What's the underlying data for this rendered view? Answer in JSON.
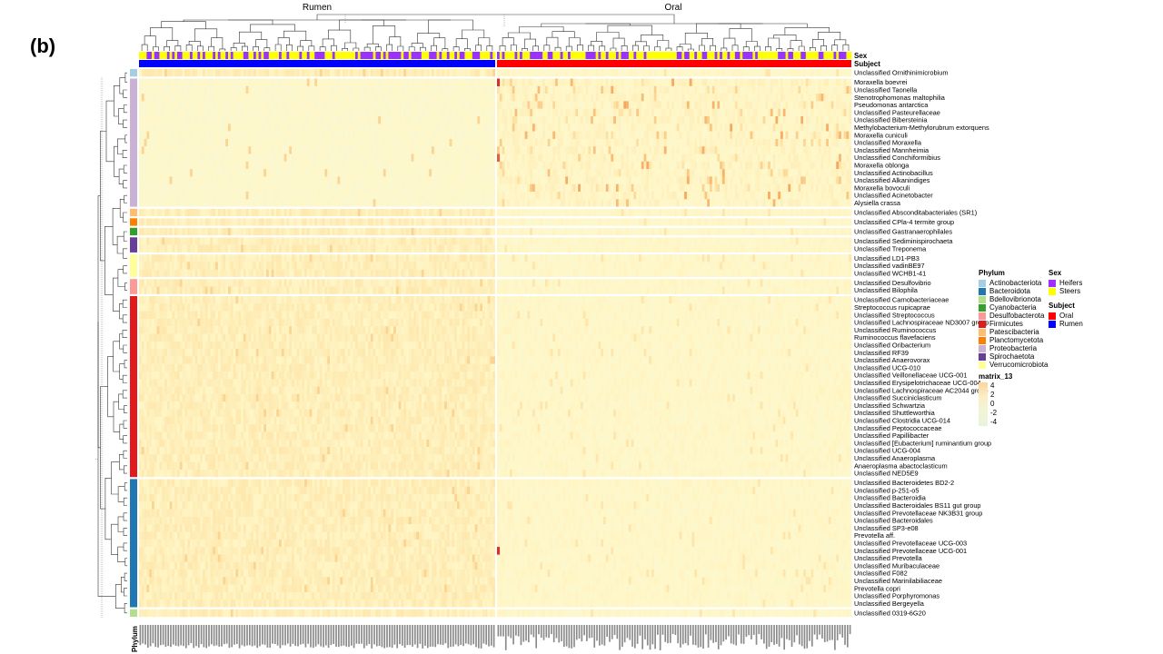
{
  "panel_label": "(b)",
  "colors": {
    "Actinobacteriota": "#a6cee3",
    "Bacteroidota": "#1f78b4",
    "Bdellovibrionota": "#b2df8a",
    "Cyanobacteria": "#33a02c",
    "Desulfobacterota": "#fb9a99",
    "Firmicutes": "#e31a1c",
    "Patescibacteria": "#fdbf6f",
    "Planctomycetota": "#ff7f00",
    "Proteobacteria": "#cab2d6",
    "Spirochaetota": "#6a3d9a",
    "Verrucomicrobiota": "#ffff99",
    "Heifers": "#9b30ff",
    "Steers": "#ffff00",
    "Oral": "#ff0000",
    "Rumen": "#0000ff"
  },
  "annotation_labels": {
    "sex": "Sex",
    "subject": "Subject",
    "phylum": "Phylum"
  },
  "legends": {
    "phylum": {
      "title": "Phylum",
      "items": [
        "Actinobacteriota",
        "Bacteroidota",
        "Bdellovibrionota",
        "Cyanobacteria",
        "Desulfobacterota",
        "Firmicutes",
        "Patescibacteria",
        "Planctomycetota",
        "Proteobacteria",
        "Spirochaetota",
        "Verrucomicrobiota"
      ]
    },
    "sex": {
      "title": "Sex",
      "items": [
        "Heifers",
        "Steers"
      ]
    },
    "subject": {
      "title": "Subject",
      "items": [
        "Oral",
        "Rumen"
      ]
    },
    "matrix": {
      "title": "matrix_13",
      "ticks": [
        "4",
        "2",
        "0",
        "-2",
        "-4"
      ]
    }
  },
  "chart_data": {
    "type": "heatmap",
    "column_groups": [
      {
        "name": "Rumen",
        "n_columns": 140
      },
      {
        "name": "Oral",
        "n_columns": 140
      }
    ],
    "color_scale": {
      "min": -4,
      "max": 4,
      "title": "matrix_13"
    },
    "row_groups": [
      {
        "phylum": "Actinobacteriota",
        "rows": [
          "Unclassified  Ornithinimicrobium"
        ]
      },
      {
        "phylum": "Proteobacteria",
        "rows": [
          "Moraxella boevrei",
          "Unclassified  Taonella",
          "Stenotrophomonas maltophilia",
          "Pseudomonas antarctica",
          "Unclassified  Pasteurellaceae",
          "Unclassified  Bibersteinia",
          "Methylobacterium-Methylorubrum extorquens",
          "Moraxella cuniculi",
          "Unclassified  Moraxella",
          "Unclassified  Mannheimia",
          "Unclassified  Conchiformibius",
          "Moraxella oblonga",
          "Unclassified  Actinobacillus",
          "Unclassified  Alkanindiges",
          "Moraxella bovoculi",
          "Unclassified  Acinetobacter",
          "Alysiella crassa"
        ]
      },
      {
        "phylum": "Patescibacteria",
        "rows": [
          "Unclassified  Absconditabacteriales (SR1)"
        ]
      },
      {
        "phylum": "Planctomycetota",
        "rows": [
          "Unclassified  CPla-4 termite group"
        ]
      },
      {
        "phylum": "Cyanobacteria",
        "rows": [
          "Unclassified  Gastranaerophilales"
        ]
      },
      {
        "phylum": "Spirochaetota",
        "rows": [
          "Unclassified  Sediminispirochaeta",
          "Unclassified  Treponema"
        ]
      },
      {
        "phylum": "Verrucomicrobiota",
        "rows": [
          "Unclassified  LD1-PB3",
          "Unclassified  vadinBE97",
          "Unclassified  WCHB1-41"
        ]
      },
      {
        "phylum": "Desulfobacterota",
        "rows": [
          "Unclassified  Desulfovibrio",
          "Unclassified  Bilophila"
        ]
      },
      {
        "phylum": "Firmicutes",
        "rows": [
          "Unclassified  Carnobacteriaceae",
          "Streptococcus rupicaprae",
          "Unclassified  Streptococcus",
          "Unclassified  Lachnospiraceae ND3007 group",
          "Unclassified  Ruminococcus",
          "Ruminococcus flavefaciens",
          "Unclassified  Oribacterium",
          "Unclassified  RF39",
          "Unclassified  Anaerovorax",
          "Unclassified  UCG-010",
          "Unclassified  Veillonellaceae UCG-001",
          "Unclassified  Erysipelotrichaceae UCG-004",
          "Unclassified  Lachnospiraceae AC2044 group",
          "Unclassified  Succiniclasticum",
          "Unclassified  Schwartzia",
          "Unclassified  Shuttleworthia",
          "Unclassified  Clostridia UCG-014",
          "Unclassified  Peptococcaceae",
          "Unclassified  Papillibacter",
          "Unclassified  [Eubacterium] ruminantium group",
          "Unclassified  UCG-004",
          "Unclassified  Anaeroplasma",
          "Anaeroplasma abactoclasticum",
          "Unclassified  NED5E9"
        ]
      },
      {
        "phylum": "Bacteroidota",
        "rows": [
          "Unclassified  Bacteroidetes BD2-2",
          "Unclassified  p-251-o5",
          "Unclassified  Bacteroidia",
          "Unclassified  Bacteroidales BS11 gut group",
          "Unclassified  Prevotellaceae NK3B31 group",
          "Unclassified  Bacteroidales",
          "Unclassified  SP3-e08",
          "Prevotella aff.",
          "Unclassified  Prevotellaceae UCG-003",
          "Unclassified  Prevotellaceae UCG-001",
          "Unclassified  Prevotella",
          "Unclassified  Muribaculaceae",
          "Unclassified  F082",
          "Unclassified  Marinilabiliaceae",
          "Prevotella copri",
          "Unclassified  Porphyromonas",
          "Unclassified  Bergeyella"
        ]
      },
      {
        "phylum": "Bdellovibrionota",
        "rows": [
          "Unclassified  0319-6G20"
        ]
      }
    ]
  }
}
